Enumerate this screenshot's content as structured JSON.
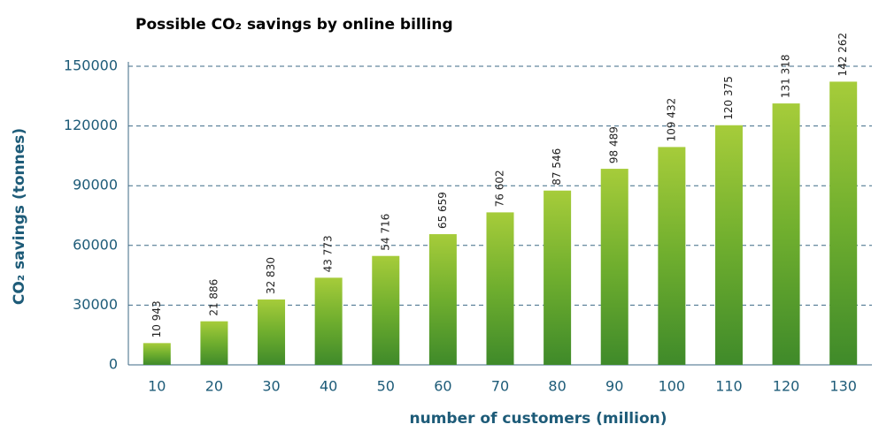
{
  "chart_data": {
    "type": "bar",
    "title": "Possible CO₂ savings by online billing",
    "xlabel": "number of customers (million)",
    "ylabel": "CO₂ savings (tonnes)",
    "categories": [
      "10",
      "20",
      "30",
      "40",
      "50",
      "60",
      "70",
      "80",
      "90",
      "100",
      "110",
      "120",
      "130"
    ],
    "values": [
      10943,
      21886,
      32830,
      43773,
      54716,
      65659,
      76602,
      87546,
      98489,
      109432,
      120375,
      131318,
      142262
    ],
    "value_labels": [
      "10 943",
      "21 886",
      "32 830",
      "43 773",
      "54 716",
      "65 659",
      "76 602",
      "87 546",
      "98 489",
      "109 432",
      "120 375",
      "131 318",
      "142 262"
    ],
    "color": "#5a9a2a",
    "ylim": [
      0,
      150000
    ],
    "yticks": [
      0,
      30000,
      60000,
      90000,
      120000,
      150000
    ],
    "grid": true
  }
}
